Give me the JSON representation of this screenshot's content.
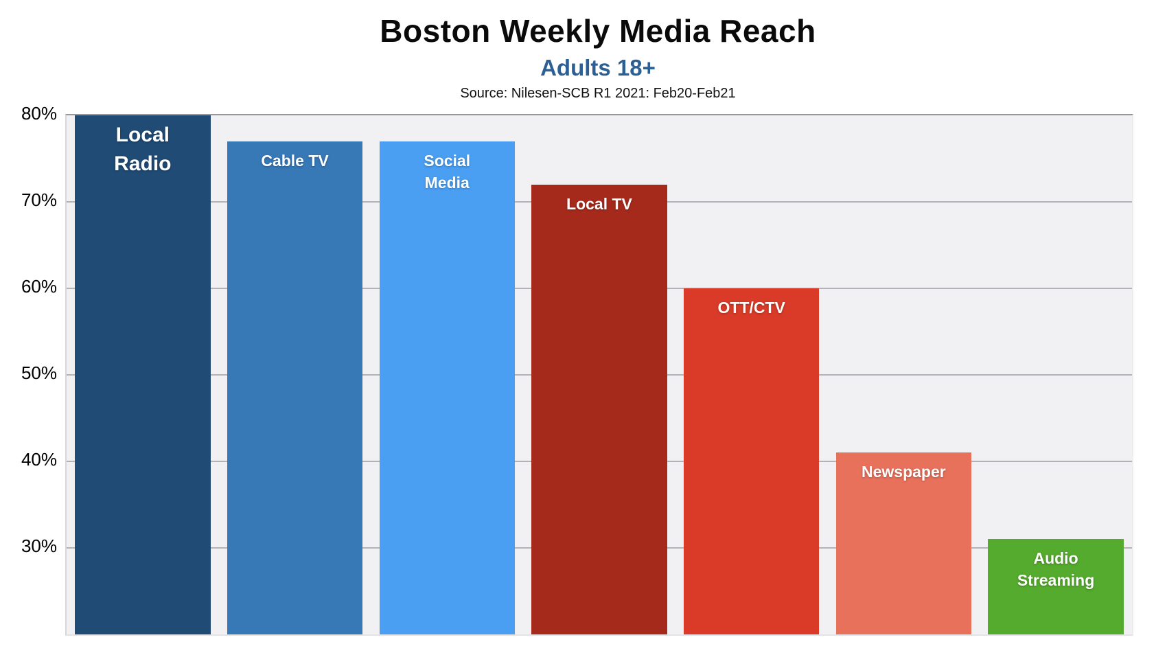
{
  "header": {
    "title": "Boston Weekly Media Reach",
    "subtitle": "Adults 18+",
    "source": "Source: Nilesen-SCB R1 2021: Feb20-Feb21"
  },
  "colors": {
    "subtitle_blue": "#2c5f94",
    "plot_background": "#f1f1f4",
    "gridline": "#b3b3b7",
    "axis_text": "#000000",
    "bar_label_text": "#ffffff"
  },
  "chart_data": {
    "type": "bar",
    "title": "Boston Weekly Media Reach",
    "subtitle": "Adults 18+",
    "source": "Source: Nilesen-SCB R1 2021: Feb20-Feb21",
    "categories": [
      "Local Radio",
      "Cable TV",
      "Social Media",
      "Local TV",
      "OTT/CTV",
      "Newspaper",
      "Audio Streaming"
    ],
    "values": [
      80,
      77,
      77,
      72,
      60,
      41,
      31
    ],
    "unit": "%",
    "bar_label_lines": [
      [
        "Local",
        "Radio"
      ],
      [
        "Cable TV"
      ],
      [
        "Social",
        "Media"
      ],
      [
        "Local TV"
      ],
      [
        "OTT/CTV"
      ],
      [
        "Newspaper"
      ],
      [
        "Audio",
        "Streaming"
      ]
    ],
    "bar_colors": [
      "#1f4b75",
      "#3778b6",
      "#4a9ff2",
      "#a52a1c",
      "#d93b28",
      "#e8715c",
      "#55ab2d"
    ],
    "xlabel": "",
    "ylabel": "",
    "ylim": [
      20,
      80
    ],
    "yticks": [
      80,
      70,
      60,
      50,
      40,
      30
    ],
    "ytick_suffix": "%",
    "grid": true,
    "legend": false
  }
}
